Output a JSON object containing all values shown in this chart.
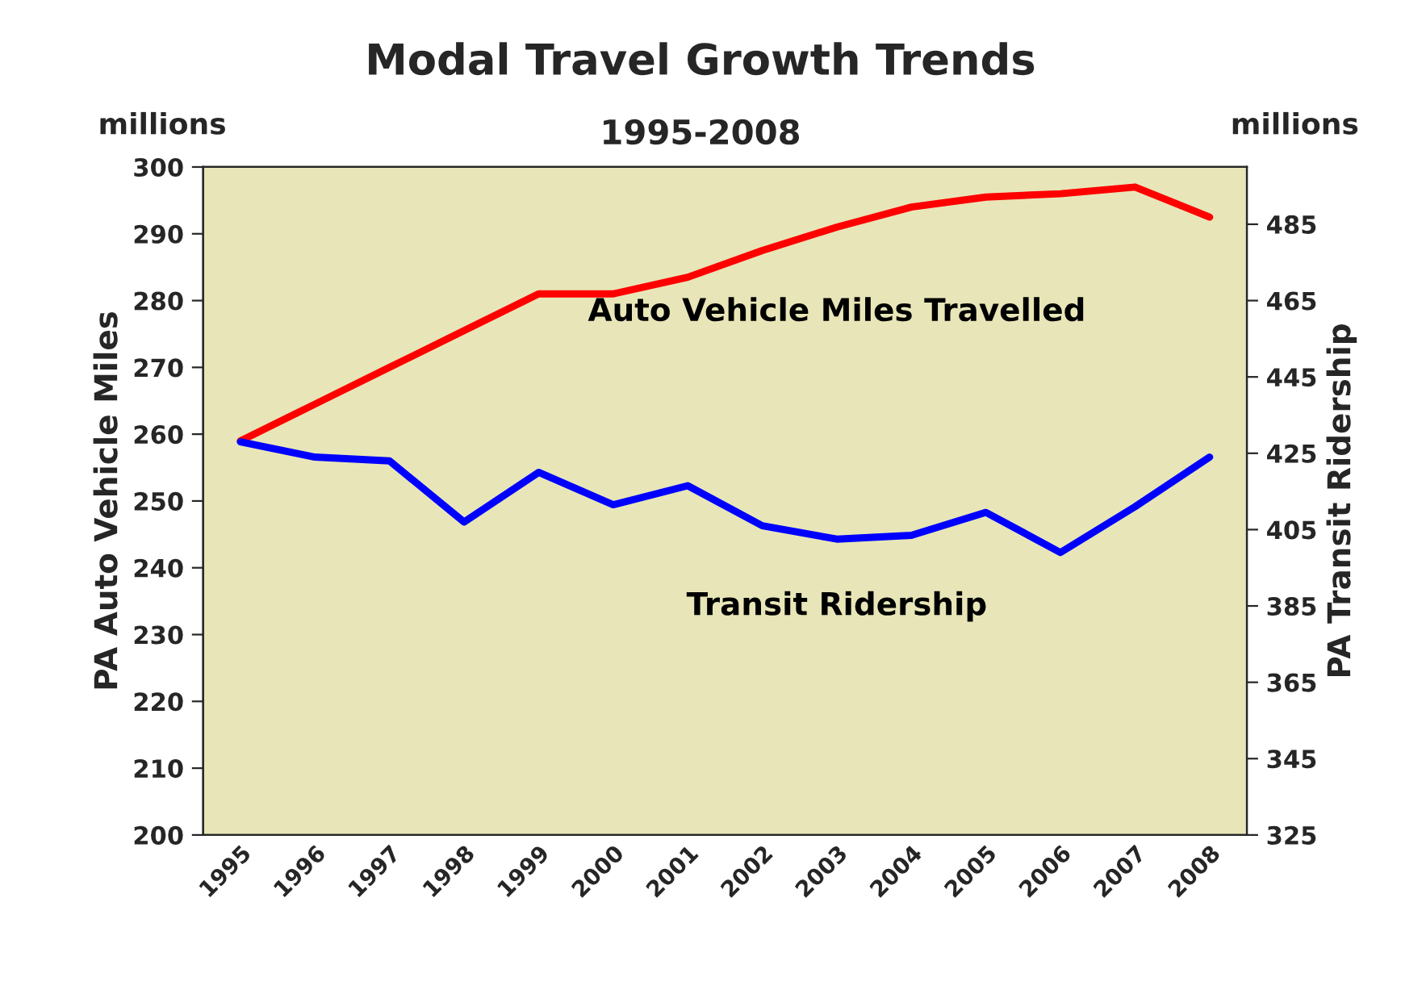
{
  "chart_data": {
    "type": "line",
    "title": "Modal Travel Growth Trends",
    "subtitle": "1995-2008",
    "ylabel": "PA Auto Vehicle Miles",
    "y2label": "PA Transit Ridership",
    "annotations": [
      "millions",
      "millions"
    ],
    "categories": [
      "1995",
      "1996",
      "1997",
      "1998",
      "1999",
      "2000",
      "2001",
      "2002",
      "2003",
      "2004",
      "2005",
      "2006",
      "2007",
      "2008"
    ],
    "series": [
      {
        "name": "Auto Vehicle Miles Travelled",
        "color": "#ff0000",
        "values": [
          259,
          264.5,
          270,
          275.5,
          281,
          281,
          283.5,
          287.5,
          291,
          294,
          295.5,
          296,
          297,
          292.5
        ]
      },
      {
        "name": "Transit Ridership",
        "color": "#0000ff",
        "axis": "y2",
        "values": [
          428,
          424,
          423,
          407,
          420,
          411.5,
          416.5,
          406,
          402.5,
          403.5,
          409.5,
          399,
          411,
          424
        ]
      }
    ],
    "ylim": [
      200,
      300
    ],
    "yticks": [
      200,
      210,
      220,
      230,
      240,
      250,
      260,
      270,
      280,
      290,
      300
    ],
    "y2lim": [
      325,
      500
    ],
    "y2ticks": [
      325,
      345,
      365,
      385,
      405,
      425,
      445,
      465,
      485
    ],
    "grid": false,
    "legend": false,
    "marker": "none",
    "line_style": "solid"
  }
}
